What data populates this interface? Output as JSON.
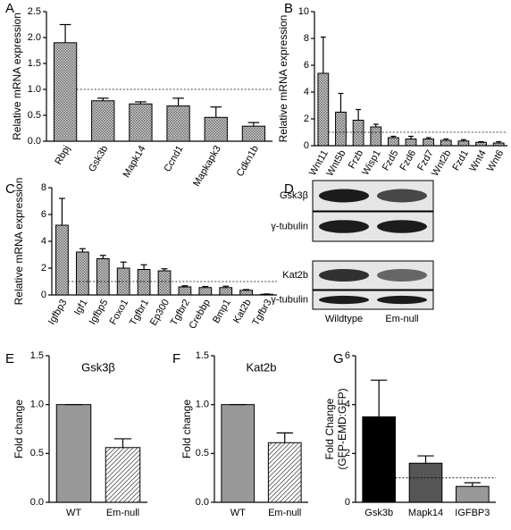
{
  "chart_data": [
    {
      "type": "bar",
      "panel": "A",
      "ylabel": "Relative mRNA expression",
      "categories": [
        "Rbpj",
        "Gsk3b",
        "Mapk14",
        "Ccnd1",
        "Mapkapk3",
        "Cdkn1b"
      ],
      "values": [
        1.9,
        0.78,
        0.72,
        0.68,
        0.46,
        0.29
      ],
      "errors": [
        0.35,
        0.05,
        0.04,
        0.15,
        0.2,
        0.07
      ],
      "colors": [
        "#b8b8b8"
      ],
      "hatch": "crosshatch",
      "ref_line": 1,
      "ylim": [
        0,
        2.5
      ],
      "yticks": [
        {
          "value": 0,
          "label": "0.0"
        },
        0.5,
        {
          "value": 1,
          "label": "1.0"
        },
        1.5,
        {
          "value": 2,
          "label": "2.0"
        },
        2.5
      ]
    },
    {
      "type": "bar",
      "panel": "B",
      "ylabel": "Relative mRNA expression",
      "categories": [
        "Wnt11",
        "Wnt5b",
        "Frzb",
        "Wisp1",
        "Fzd5",
        "Fzd6",
        "Fzd7",
        "Wnt2b",
        "Fzd1",
        "Wnt4",
        "Wnt6"
      ],
      "values": [
        5.4,
        2.5,
        1.9,
        1.4,
        0.6,
        0.5,
        0.5,
        0.4,
        0.35,
        0.25,
        0.2
      ],
      "errors": [
        2.7,
        1.4,
        0.8,
        0.2,
        0.1,
        0.2,
        0.1,
        0.1,
        0.1,
        0.05,
        0.1
      ],
      "colors": [
        "#b8b8b8"
      ],
      "hatch": "crosshatch",
      "ref_line": 1,
      "ylim": [
        0,
        10
      ],
      "yticks": [
        0,
        2,
        4,
        6,
        8,
        10
      ]
    },
    {
      "type": "bar",
      "panel": "C",
      "ylabel": "Relative mRNA expression",
      "categories": [
        "Igfbp3",
        "Igf1",
        "Igfbp5",
        "Foxo1",
        "Tgfbr1",
        "Ep300",
        "Tgfbr2",
        "Crebbp",
        "Bmp1",
        "Kat2b",
        "Tgfbr3"
      ],
      "values": [
        5.2,
        3.2,
        2.7,
        2.0,
        1.9,
        1.8,
        0.6,
        0.55,
        0.55,
        0.35,
        0.05
      ],
      "errors": [
        2.0,
        0.25,
        0.25,
        0.45,
        0.35,
        0.15,
        0.08,
        0.08,
        0.1,
        0.05,
        0.02
      ],
      "colors": [
        "#b8b8b8"
      ],
      "hatch": "crosshatch",
      "ref_line": 1,
      "ylim": [
        0,
        8
      ],
      "yticks": [
        0,
        2,
        4,
        6,
        8
      ]
    },
    {
      "type": "bar",
      "panel": "E",
      "title": "Gsk3β",
      "ylabel": "Fold change",
      "categories": [
        "WT",
        "Em-null"
      ],
      "values": [
        1.0,
        0.56
      ],
      "errors": [
        0,
        0.09
      ],
      "colors": [
        "#999999",
        "#ffffff"
      ],
      "hatch": "diagonal",
      "ylim": [
        0,
        1.5
      ],
      "yticks": [
        {
          "value": 0,
          "label": "0.0"
        },
        0.5,
        {
          "value": 1,
          "label": "1.0"
        },
        1.5
      ]
    },
    {
      "type": "bar",
      "panel": "F",
      "title": "Kat2b",
      "ylabel": "Fold change",
      "categories": [
        "WT",
        "Em-null"
      ],
      "values": [
        1.0,
        0.61
      ],
      "errors": [
        0,
        0.1
      ],
      "colors": [
        "#999999",
        "#ffffff"
      ],
      "hatch": "diagonal",
      "ylim": [
        0,
        1.5
      ],
      "yticks": [
        {
          "value": 0,
          "label": "0.0"
        },
        0.5,
        {
          "value": 1,
          "label": "1.0"
        },
        1.5
      ]
    },
    {
      "type": "bar",
      "panel": "G",
      "ylabel": [
        "Fold Change",
        "(GFP-EMD:GFP)"
      ],
      "categories": [
        "Gsk3b",
        "Mapk14",
        "IGFBP3"
      ],
      "values": [
        3.5,
        1.6,
        0.65
      ],
      "errors": [
        1.5,
        0.3,
        0.15
      ],
      "colors": [
        "#000000",
        "#555555",
        "#999999"
      ],
      "ref_line": 1,
      "ylim": [
        0,
        6
      ],
      "yticks": [
        0,
        2,
        4,
        6
      ]
    }
  ],
  "blot": {
    "panel": "D",
    "bands": [
      "Gsk3β",
      "γ-tubulin",
      "Kat2b",
      "γ-tubulin"
    ],
    "lanes": [
      "Wildtype",
      "Em-null"
    ]
  }
}
